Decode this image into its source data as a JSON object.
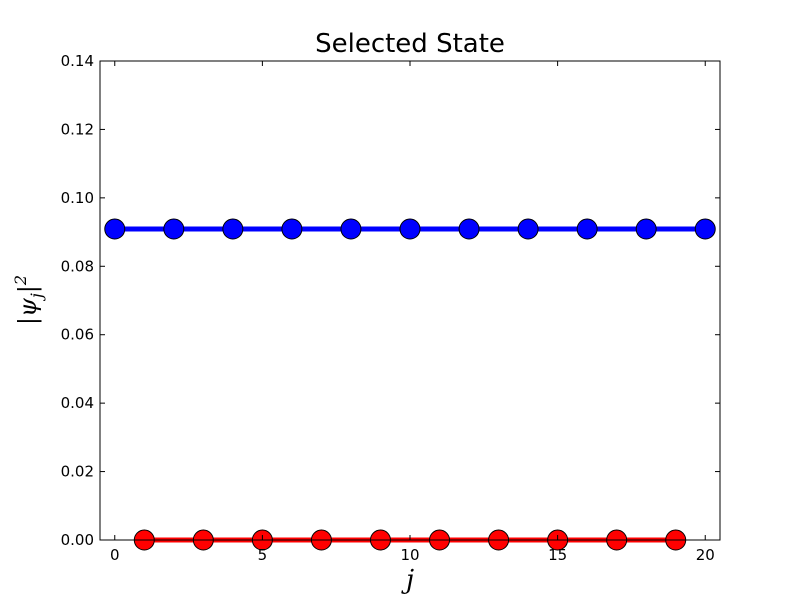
{
  "chart_data": {
    "type": "line",
    "title": "Selected State",
    "xlabel": "j",
    "ylabel": "|ψj|²",
    "ylabel_parts": {
      "pre": "|ψ",
      "sub": "j",
      "post": "|",
      "sup": "2"
    },
    "xlim": [
      -0.5,
      20.5
    ],
    "ylim": [
      0.0,
      0.14
    ],
    "x_ticks": [
      0,
      5,
      10,
      15,
      20
    ],
    "x_tick_labels": [
      "0",
      "5",
      "10",
      "15",
      "20"
    ],
    "y_ticks": [
      0.0,
      0.02,
      0.04,
      0.06,
      0.08,
      0.1,
      0.12,
      0.14
    ],
    "y_tick_labels": [
      "0.00",
      "0.02",
      "0.04",
      "0.06",
      "0.08",
      "0.10",
      "0.12",
      "0.14"
    ],
    "grid": false,
    "legend": "none",
    "series": [
      {
        "color": "#0000ff",
        "x": [
          0,
          2,
          4,
          6,
          8,
          10,
          12,
          14,
          16,
          18,
          20
        ],
        "values": [
          0.0909,
          0.0909,
          0.0909,
          0.0909,
          0.0909,
          0.0909,
          0.0909,
          0.0909,
          0.0909,
          0.0909,
          0.0909
        ]
      },
      {
        "color": "#ff0000",
        "x": [
          1,
          3,
          5,
          7,
          9,
          11,
          13,
          15,
          17,
          19
        ],
        "values": [
          0,
          0,
          0,
          0,
          0,
          0,
          0,
          0,
          0,
          0
        ]
      }
    ]
  }
}
